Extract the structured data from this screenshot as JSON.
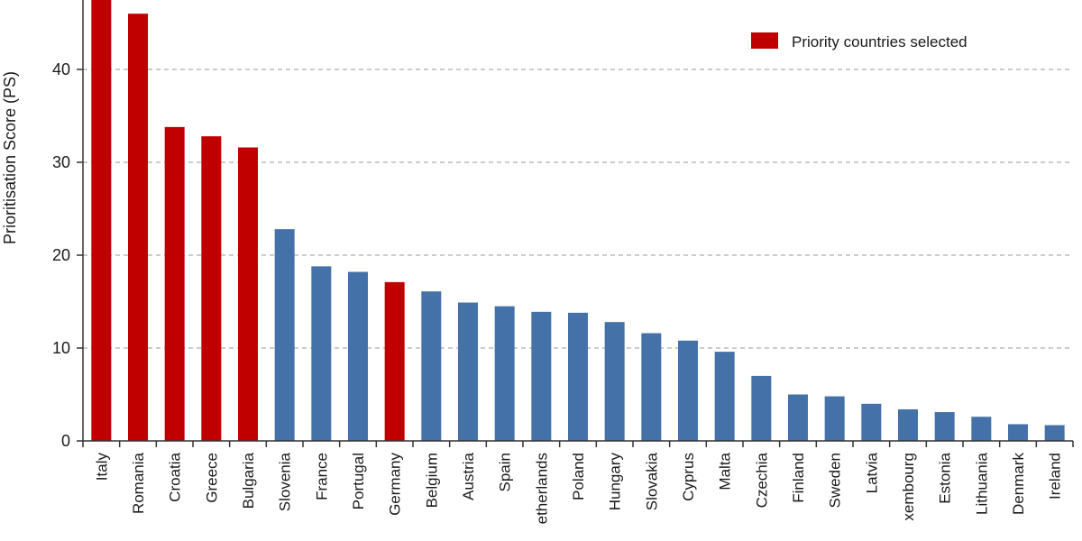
{
  "chart_data": {
    "type": "bar",
    "title": "",
    "xlabel": "",
    "ylabel": "Prioritisation Score (PS)",
    "ylim": [
      0,
      47
    ],
    "yticks": [
      0,
      10,
      20,
      30,
      40
    ],
    "grid": "horizontal-dashed",
    "legend": {
      "position": "top-right",
      "entries": [
        {
          "label": "Priority countries selected",
          "color": "#c00000"
        }
      ]
    },
    "colors": {
      "priority": "#c00000",
      "other": "#4472a8"
    },
    "categories": [
      "Italy",
      "Romania",
      "Croatia",
      "Greece",
      "Bulgaria",
      "Slovenia",
      "France",
      "Portugal",
      "Germany",
      "Belgium",
      "Austria",
      "Spain",
      "Netherlands",
      "Poland",
      "Hungary",
      "Slovakia",
      "Cyprus",
      "Malta",
      "Czechia",
      "Finland",
      "Sweden",
      "Latvia",
      "Luxembourg",
      "Estonia",
      "Lithuania",
      "Denmark",
      "Ireland"
    ],
    "tick_labels": [
      "Italy",
      "Romania",
      "Croatia",
      "Greece",
      "Bulgaria",
      "Slovenia",
      "France",
      "Portugal",
      "Germany",
      "Belgium",
      "Austria",
      "Spain",
      "etherlands",
      "Poland",
      "Hungary",
      "Slovakia",
      "Cyprus",
      "Malta",
      "Czechia",
      "Finland",
      "Sweden",
      "Latvia",
      "xembourg",
      "Estonia",
      "Lithuania",
      "Denmark",
      "Ireland"
    ],
    "values": [
      48,
      46.0,
      33.8,
      32.8,
      31.6,
      22.8,
      18.8,
      18.2,
      17.1,
      16.1,
      14.9,
      14.5,
      13.9,
      13.8,
      12.8,
      11.6,
      10.8,
      9.6,
      7.0,
      5.0,
      4.8,
      4.0,
      3.4,
      3.1,
      2.6,
      1.8,
      1.7
    ],
    "priority": [
      true,
      true,
      true,
      true,
      true,
      false,
      false,
      false,
      true,
      false,
      false,
      false,
      false,
      false,
      false,
      false,
      false,
      false,
      false,
      false,
      false,
      false,
      false,
      false,
      false,
      false,
      false
    ]
  }
}
